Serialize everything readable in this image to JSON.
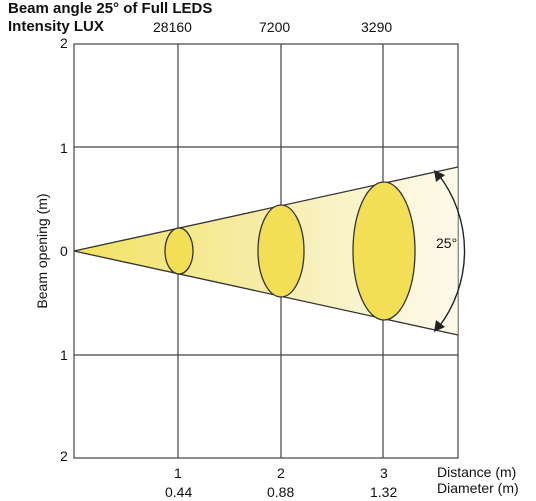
{
  "header": {
    "title_line": "Beam angle 25° of Full LEDS",
    "intensity_label": "Intensity LUX",
    "lux_values": [
      "28160",
      "7200",
      "3290"
    ]
  },
  "axes": {
    "y_label": "Beam opening (m)",
    "y_ticks": [
      "2",
      "1",
      "0",
      "1",
      "2"
    ],
    "x_distance_ticks": [
      "1",
      "2",
      "3"
    ],
    "x_diameter_ticks": [
      "0.44",
      "0.88",
      "1.32"
    ],
    "distance_label": "Distance (m)",
    "diameter_label": "Diameter (m)"
  },
  "beam": {
    "angle_label": "25°",
    "fill_color": "#f4e56a",
    "ellipse_color": "#f3e15a"
  }
}
